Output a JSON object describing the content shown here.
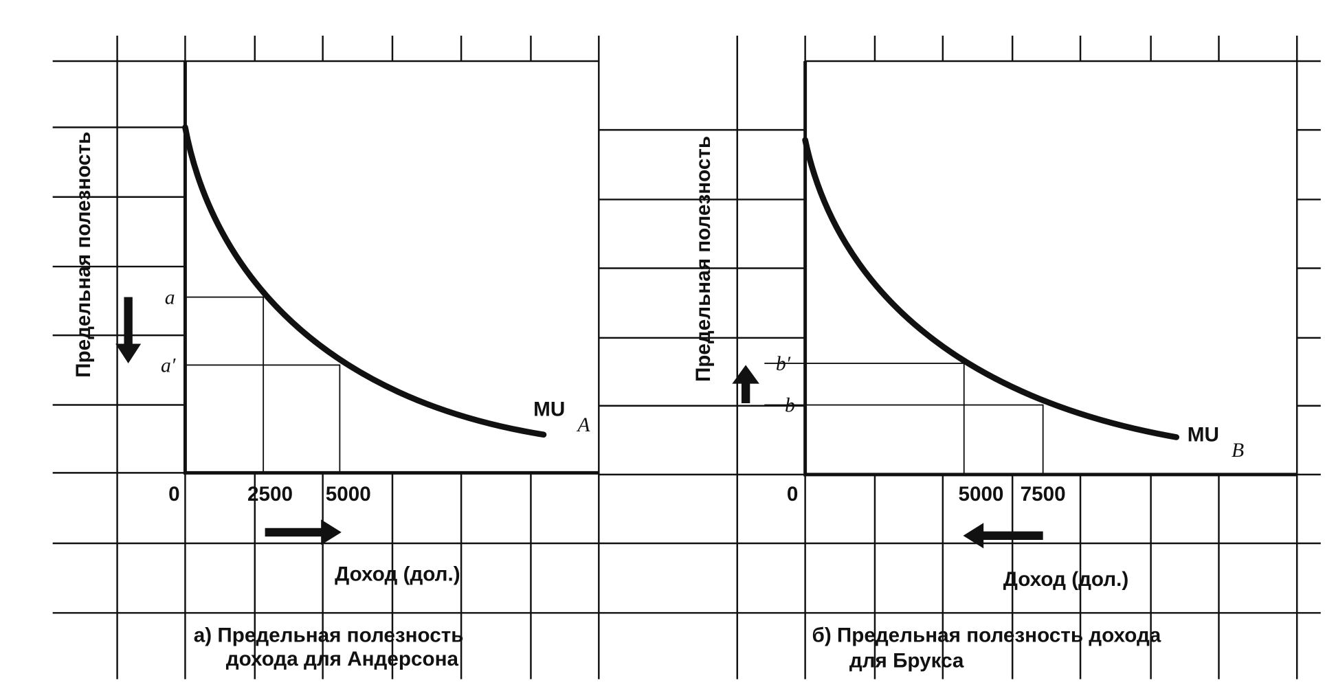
{
  "panels": [
    {
      "y_label": "Предельная полезность",
      "x_label": "Доход  (дол.)",
      "x_tick_labels": [
        "0",
        "2500",
        "5000"
      ],
      "y_tick_labels": [
        "a",
        "a′"
      ],
      "curve_label": {
        "text": "MU",
        "sub": "A"
      },
      "caption": [
        "а)  Предельная полезность",
        "дохода для Андерсона"
      ]
    },
    {
      "y_label": "Предельная полезность",
      "x_label": "Доход  (дол.)",
      "x_tick_labels": [
        "0",
        "5000",
        "7500"
      ],
      "y_tick_labels": [
        "b′",
        "b"
      ],
      "curve_label": {
        "text": "MU",
        "sub": "B"
      },
      "caption": [
        "б)  Предельная полезность дохода",
        "для Брукса"
      ]
    }
  ]
}
